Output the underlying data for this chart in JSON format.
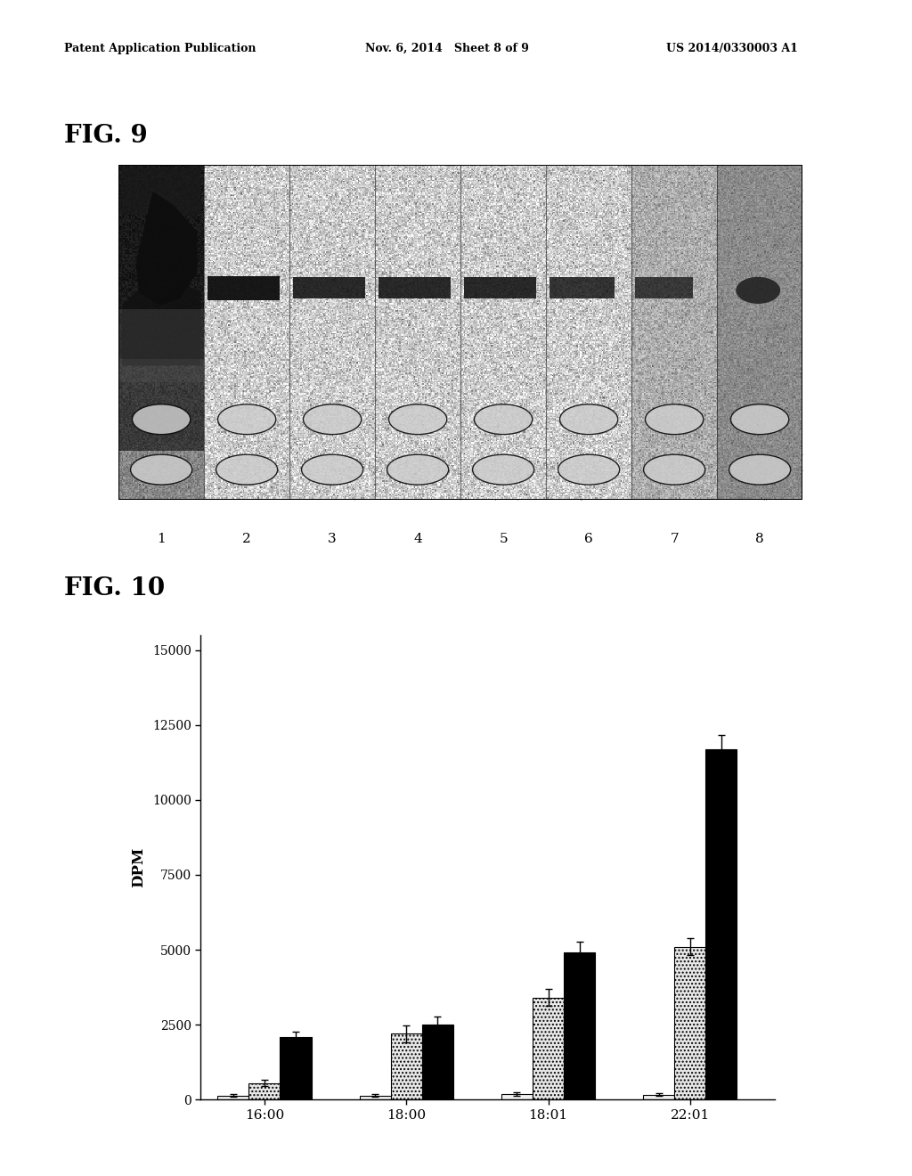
{
  "header_left": "Patent Application Publication",
  "header_mid": "Nov. 6, 2014   Sheet 8 of 9",
  "header_right": "US 2014/0330003 A1",
  "fig9_label": "FIG. 9",
  "fig10_label": "FIG. 10",
  "fig9_lane_labels": [
    "1",
    "2",
    "3",
    "4",
    "5",
    "6",
    "7",
    "8"
  ],
  "fig10_xlabel_categories": [
    "16:00",
    "18:00",
    "18:01",
    "22:01"
  ],
  "fig10_ylabel": "DPM",
  "fig10_yticks": [
    0,
    2500,
    5000,
    7500,
    10000,
    12500,
    15000
  ],
  "fig10_bar_groups": {
    "series1_values": [
      130,
      130,
      180,
      160
    ],
    "series2_values": [
      550,
      2200,
      3400,
      5100
    ],
    "series3_values": [
      2100,
      2500,
      4900,
      11700
    ]
  },
  "fig10_error_bars": {
    "series1_err": [
      40,
      40,
      60,
      40
    ],
    "series2_err": [
      100,
      280,
      280,
      280
    ],
    "series3_err": [
      180,
      280,
      380,
      450
    ]
  },
  "background_color": "#ffffff",
  "bar_width": 0.22,
  "fig10_ylim": [
    0,
    15500
  ]
}
